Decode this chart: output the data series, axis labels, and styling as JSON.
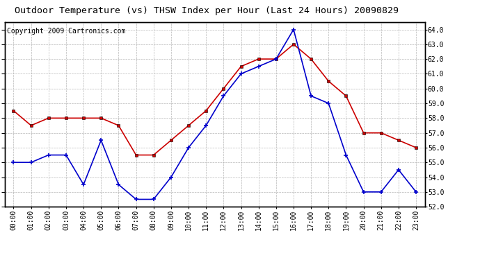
{
  "title": "Outdoor Temperature (vs) THSW Index per Hour (Last 24 Hours) 20090829",
  "copyright": "Copyright 2009 Cartronics.com",
  "hours": [
    0,
    1,
    2,
    3,
    4,
    5,
    6,
    7,
    8,
    9,
    10,
    11,
    12,
    13,
    14,
    15,
    16,
    17,
    18,
    19,
    20,
    21,
    22,
    23
  ],
  "hour_labels": [
    "00:00",
    "01:00",
    "02:00",
    "03:00",
    "04:00",
    "05:00",
    "06:00",
    "07:00",
    "08:00",
    "09:00",
    "10:00",
    "11:00",
    "12:00",
    "13:00",
    "14:00",
    "15:00",
    "16:00",
    "17:00",
    "18:00",
    "19:00",
    "20:00",
    "21:00",
    "22:00",
    "23:00"
  ],
  "temp": [
    55.0,
    55.0,
    55.5,
    55.5,
    53.5,
    56.5,
    53.5,
    52.5,
    52.5,
    54.0,
    56.0,
    57.5,
    59.5,
    61.0,
    61.5,
    62.0,
    64.0,
    59.5,
    59.0,
    55.5,
    53.0,
    53.0,
    54.5,
    53.0
  ],
  "thsw": [
    58.5,
    57.5,
    58.0,
    58.0,
    58.0,
    58.0,
    57.5,
    55.5,
    55.5,
    56.5,
    57.5,
    58.5,
    60.0,
    61.5,
    62.0,
    62.0,
    63.0,
    62.0,
    60.5,
    59.5,
    57.0,
    57.0,
    56.5,
    56.0
  ],
  "ylim_min": 52.0,
  "ylim_max": 64.5,
  "yticks": [
    52.0,
    53.0,
    54.0,
    55.0,
    56.0,
    57.0,
    58.0,
    59.0,
    60.0,
    61.0,
    62.0,
    63.0,
    64.0
  ],
  "temp_color": "#0000cc",
  "thsw_color": "#cc0000",
  "line_width": 1.2,
  "bg_color": "#ffffff",
  "grid_color": "#aaaaaa",
  "title_fontsize": 9.5,
  "tick_fontsize": 7,
  "copyright_fontsize": 7
}
